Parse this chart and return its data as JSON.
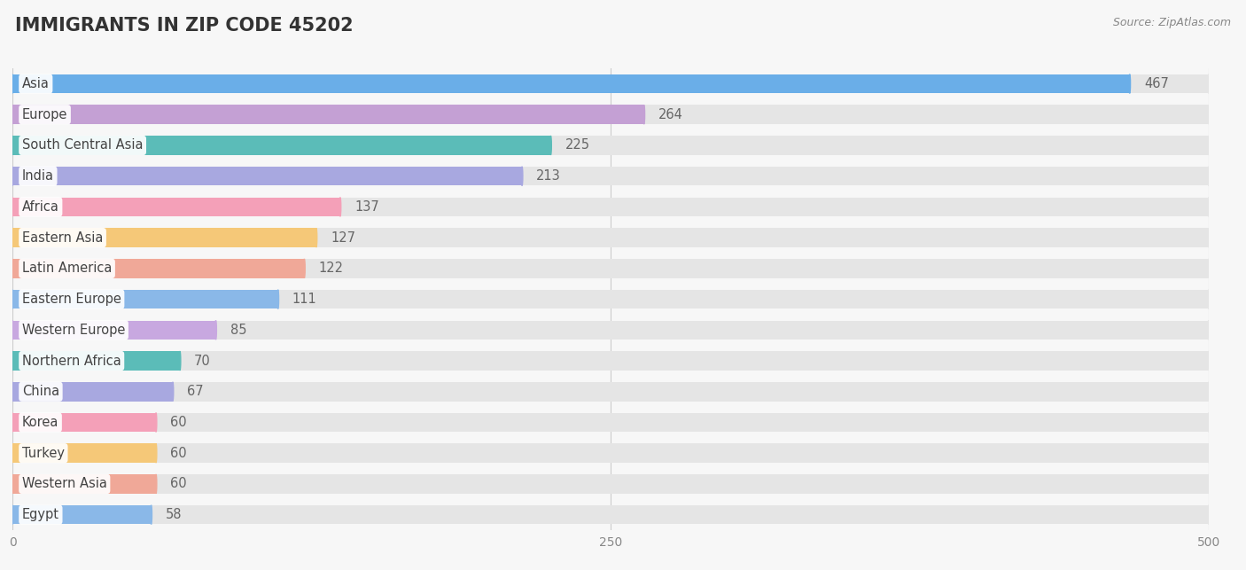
{
  "title": "IMMIGRANTS IN ZIP CODE 45202",
  "source": "Source: ZipAtlas.com",
  "categories": [
    "Asia",
    "Europe",
    "South Central Asia",
    "India",
    "Africa",
    "Eastern Asia",
    "Latin America",
    "Eastern Europe",
    "Western Europe",
    "Northern Africa",
    "China",
    "Korea",
    "Turkey",
    "Western Asia",
    "Egypt"
  ],
  "values": [
    467,
    264,
    225,
    213,
    137,
    127,
    122,
    111,
    85,
    70,
    67,
    60,
    60,
    60,
    58
  ],
  "colors": [
    "#6aaee8",
    "#c4a0d4",
    "#5bbcb8",
    "#a8a8e0",
    "#f4a0b8",
    "#f5c878",
    "#f0a898",
    "#8ab8e8",
    "#c8a8e0",
    "#5bbcb8",
    "#a8a8e0",
    "#f4a0b8",
    "#f5c878",
    "#f0a898",
    "#8ab8e8"
  ],
  "xlim": [
    0,
    500
  ],
  "xticks": [
    0,
    250,
    500
  ],
  "background_color": "#f7f7f7",
  "bar_bg_color": "#e5e5e5",
  "title_fontsize": 15,
  "label_fontsize": 10.5,
  "value_fontsize": 10.5,
  "bar_height": 0.62
}
